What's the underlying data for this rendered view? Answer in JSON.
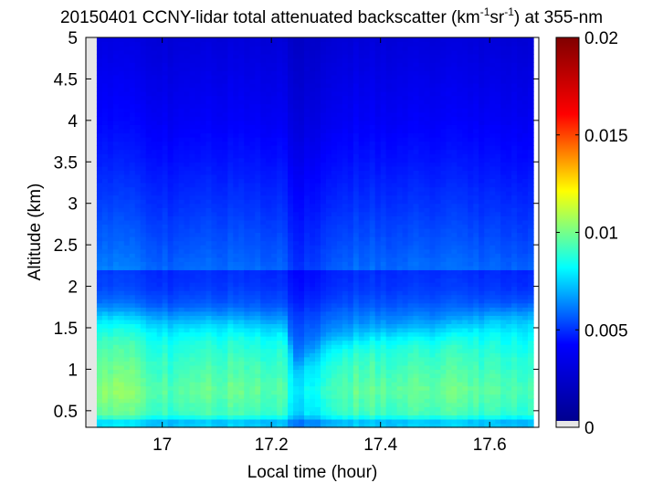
{
  "chart_data": {
    "type": "heatmap",
    "title": {
      "prefix": "20150401 CCNY-lidar total attenuated backscatter (km",
      "sup1": "-1",
      "mid": "sr",
      "sup2": "-1",
      "suffix": ") at 355-nm"
    },
    "xlabel": "Local time (hour)",
    "ylabel": "Altitude (km)",
    "xlim": [
      16.86,
      17.69
    ],
    "ylim": [
      0.3,
      5.0
    ],
    "xticks": [
      17.0,
      17.2,
      17.4,
      17.6
    ],
    "xtick_labels": [
      "17",
      "17.2",
      "17.4",
      "17.6"
    ],
    "yticks": [
      0.5,
      1.0,
      1.5,
      2.0,
      2.5,
      3.0,
      3.5,
      4.0,
      4.5,
      5.0
    ],
    "ytick_labels": [
      "0.5",
      "1",
      "1.5",
      "2",
      "2.5",
      "3",
      "3.5",
      "4",
      "4.5",
      "5"
    ],
    "data_xrange": [
      16.88,
      17.68
    ],
    "colorbar": {
      "colormap": "jet",
      "clim": [
        0,
        0.02
      ],
      "ticks": [
        0,
        0.005,
        0.01,
        0.015,
        0.02
      ],
      "tick_labels": [
        "0",
        "0.005",
        "0.01",
        "0.015",
        "0.02"
      ]
    },
    "colormap_stops": [
      "#00008f",
      "#0000ff",
      "#00ffff",
      "#ffff00",
      "#ff0000",
      "#800000"
    ],
    "missing_color": "#e6e6e6",
    "profile_altitudes_km": [
      0.3,
      0.36,
      0.45,
      0.6,
      0.75,
      0.9,
      1.1,
      1.3,
      1.5,
      1.65,
      1.8,
      2.0,
      2.5,
      3.0,
      3.5,
      4.0,
      4.5,
      5.0
    ],
    "profile_backscatter": [
      0.007,
      0.006,
      0.0088,
      0.0092,
      0.0096,
      0.0092,
      0.0088,
      0.0083,
      0.0075,
      0.0068,
      0.0058,
      0.005,
      0.0042,
      0.0035,
      0.0029,
      0.0024,
      0.0021,
      0.0018
    ],
    "time_scaling": {
      "times_hour": [
        16.88,
        16.93,
        16.98,
        17.02,
        17.08,
        17.14,
        17.2,
        17.23,
        17.24,
        17.28,
        17.32,
        17.36,
        17.42,
        17.48,
        17.55,
        17.62,
        17.68
      ],
      "factors": [
        1.04,
        1.08,
        0.99,
        0.94,
        1.0,
        1.0,
        0.98,
        0.92,
        0.74,
        0.8,
        0.92,
        1.0,
        0.98,
        1.0,
        1.0,
        0.96,
        0.94
      ]
    },
    "bl_height_km": {
      "times_hour": [
        16.88,
        17.02,
        17.1,
        17.23,
        17.24,
        17.3,
        17.4,
        17.5,
        17.62,
        17.68
      ],
      "heights": [
        1.7,
        1.62,
        1.62,
        1.55,
        1.05,
        1.32,
        1.45,
        1.48,
        1.68,
        1.72
      ]
    }
  }
}
